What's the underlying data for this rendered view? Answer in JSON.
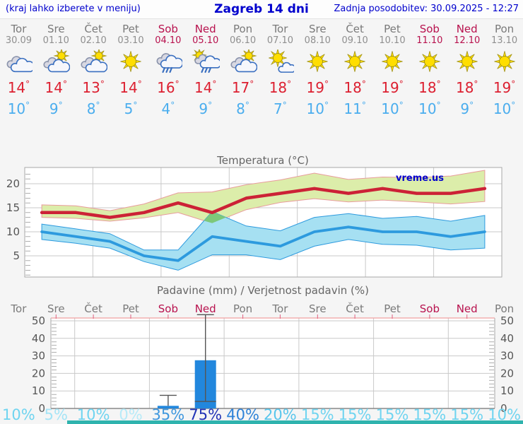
{
  "header": {
    "left_note": "(kraj lahko izberete v meniju)",
    "title": "Zagreb 14 dni",
    "updated": "Zadnja posodobitev: 30.09.2025 - 12:27"
  },
  "colors": {
    "accent_blue": "#0000cd",
    "weekday": "#7a7a7a",
    "weekend": "#b8124e",
    "date": "#8f8f8f",
    "tmax_text": "#dc1f30",
    "tmin_text": "#4aadee",
    "grid": "#c9c9c9",
    "axis_text": "#555555",
    "title_text": "#666666",
    "plot_border": "#a8a8a8",
    "precip_top_border": "#f0a0a0",
    "day_tick_pink": "#e06080",
    "whisker": "#555555",
    "footer": "#2fb3ae"
  },
  "forecast": {
    "days": [
      {
        "name": "Tor",
        "date": "30.09",
        "weekend": false,
        "icon": "cloudy",
        "tmax": "14",
        "tmin": "10"
      },
      {
        "name": "Sre",
        "date": "01.10",
        "weekend": false,
        "icon": "sun-cloud",
        "tmax": "14",
        "tmin": "9"
      },
      {
        "name": "Čet",
        "date": "02.10",
        "weekend": false,
        "icon": "sun-cloud",
        "tmax": "13",
        "tmin": "8"
      },
      {
        "name": "Pet",
        "date": "03.10",
        "weekend": false,
        "icon": "sunny",
        "tmax": "14",
        "tmin": "5"
      },
      {
        "name": "Sob",
        "date": "04.10",
        "weekend": true,
        "icon": "rain",
        "tmax": "16",
        "tmin": "4"
      },
      {
        "name": "Ned",
        "date": "05.10",
        "weekend": true,
        "icon": "sun-rain",
        "tmax": "14",
        "tmin": "9"
      },
      {
        "name": "Pon",
        "date": "06.10",
        "weekend": false,
        "icon": "sun-cloud",
        "tmax": "17",
        "tmin": "8"
      },
      {
        "name": "Tor",
        "date": "07.10",
        "weekend": false,
        "icon": "sun-small-cloud",
        "tmax": "18",
        "tmin": "7"
      },
      {
        "name": "Sre",
        "date": "08.10",
        "weekend": false,
        "icon": "sunny",
        "tmax": "19",
        "tmin": "10"
      },
      {
        "name": "Čet",
        "date": "09.10",
        "weekend": false,
        "icon": "sunny",
        "tmax": "18",
        "tmin": "11"
      },
      {
        "name": "Pet",
        "date": "10.10",
        "weekend": false,
        "icon": "sunny",
        "tmax": "19",
        "tmin": "10"
      },
      {
        "name": "Sob",
        "date": "11.10",
        "weekend": true,
        "icon": "sunny",
        "tmax": "18",
        "tmin": "10"
      },
      {
        "name": "Ned",
        "date": "12.10",
        "weekend": true,
        "icon": "sunny",
        "tmax": "18",
        "tmin": "9"
      },
      {
        "name": "Pon",
        "date": "13.10",
        "weekend": false,
        "icon": "sunny",
        "tmax": "19",
        "tmin": "10"
      }
    ]
  },
  "chart_data": [
    {
      "type": "line",
      "title": "Temperatura (°C)",
      "watermark": "vreme.us",
      "ylabel": "°C",
      "ylim": [
        0.5,
        23
      ],
      "yticks": [
        5,
        10,
        15,
        20
      ],
      "grid": true,
      "series": [
        {
          "name": "tmax",
          "color": "#cc2236",
          "values": [
            14,
            14,
            13,
            14,
            16,
            14,
            17,
            18,
            19,
            18,
            19,
            18,
            18,
            19
          ]
        },
        {
          "name": "tmin",
          "color": "#2d9ade",
          "values": [
            10,
            9,
            8,
            5,
            4,
            9,
            8,
            7,
            10,
            11,
            10,
            10,
            9,
            10
          ]
        }
      ],
      "bands": [
        {
          "name": "tmax-range",
          "fill": "#dcedaa",
          "stroke": "#e89c9c",
          "upper": [
            15.6,
            15.4,
            14.4,
            15.8,
            18.1,
            18.3,
            19.8,
            20.8,
            22.2,
            20.9,
            21.4,
            21.3,
            21.6,
            22.8
          ],
          "lower": [
            13.0,
            12.8,
            12.2,
            12.9,
            14.0,
            11.8,
            14.6,
            16.1,
            16.9,
            16.2,
            16.6,
            16.2,
            15.8,
            16.3
          ]
        },
        {
          "name": "tmin-range",
          "fill": "#a6e0f2",
          "stroke": "#2d9ade",
          "upper": [
            11.6,
            10.6,
            9.6,
            6.2,
            6.2,
            14.2,
            11.2,
            10.2,
            13.0,
            13.8,
            12.8,
            13.2,
            12.2,
            13.4
          ],
          "lower": [
            8.4,
            7.6,
            6.6,
            3.8,
            2.0,
            5.2,
            5.2,
            4.2,
            7.0,
            8.4,
            7.4,
            7.2,
            6.2,
            6.6
          ]
        }
      ],
      "overlap": {
        "fill": "#7dc87a",
        "points_dayT": [
          [
            4.76,
            12.3
          ],
          [
            5.0,
            14.2
          ],
          [
            5.41,
            13.0
          ],
          [
            5.0,
            11.8
          ]
        ]
      }
    },
    {
      "type": "bar",
      "title": "Padavine (mm) / Verjetnost padavin (%)",
      "categories": [
        "Tor",
        "Sre",
        "Čet",
        "Pet",
        "Sob",
        "Ned",
        "Pon",
        "Tor",
        "Sre",
        "Čet",
        "Pet",
        "Sob",
        "Ned",
        "Pon"
      ],
      "weekend_flags": [
        false,
        false,
        false,
        false,
        true,
        true,
        false,
        false,
        false,
        false,
        false,
        true,
        true,
        false
      ],
      "ylim": [
        0,
        52
      ],
      "yticks": [
        0,
        10,
        20,
        30,
        40,
        50
      ],
      "grid": true,
      "bar_color": "#2287dd",
      "values_mm": [
        0,
        0,
        0,
        0,
        1.5,
        27.5,
        0,
        0,
        0,
        0,
        0,
        0,
        0,
        0
      ],
      "bars": [
        {
          "day_index": 4,
          "mm": 1.5,
          "whisker_top": 7.5,
          "whisker_low": null
        },
        {
          "day_index": 5,
          "mm": 27.5,
          "whisker_top": 53.5,
          "whisker_low": 4
        }
      ],
      "probabilities": [
        {
          "label": "10%",
          "color": "#6fd4f0"
        },
        {
          "label": "5%",
          "color": "#a4e4f6"
        },
        {
          "label": "10%",
          "color": "#6fd4f0"
        },
        {
          "label": "0%",
          "color": "#b6eaf8"
        },
        {
          "label": "35%",
          "color": "#3e97de"
        },
        {
          "label": "75%",
          "color": "#2133b6"
        },
        {
          "label": "40%",
          "color": "#2e82d8"
        },
        {
          "label": "20%",
          "color": "#58c6ec"
        },
        {
          "label": "15%",
          "color": "#6fd4f0"
        },
        {
          "label": "15%",
          "color": "#6fd4f0"
        },
        {
          "label": "15%",
          "color": "#6fd4f0"
        },
        {
          "label": "15%",
          "color": "#6fd4f0"
        },
        {
          "label": "15%",
          "color": "#6fd4f0"
        },
        {
          "label": "10%",
          "color": "#6fd4f0"
        }
      ]
    }
  ]
}
